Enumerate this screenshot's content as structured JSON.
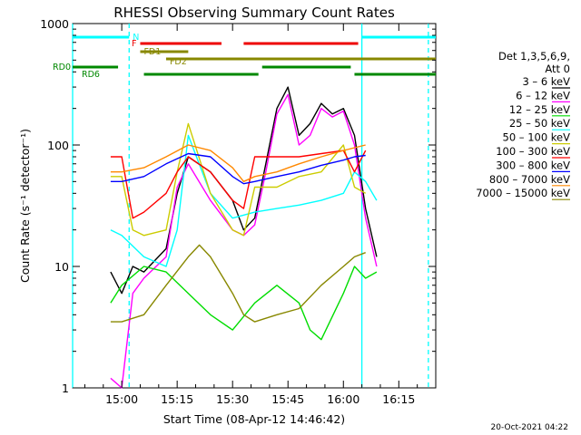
{
  "chart_data": {
    "type": "line",
    "title": "RHESSI Observing Summary Count Rates",
    "xlabel": "Start Time (08-Apr-12 14:46:42)",
    "ylabel": "Count Rate (s⁻¹ detector⁻¹)",
    "yscale": "log",
    "ylim": [
      1,
      1000
    ],
    "xlim": [
      "14:46:42",
      "16:25:00"
    ],
    "x_ticks": [
      "15:00",
      "15:15",
      "15:30",
      "15:45",
      "16:00",
      "16:15"
    ],
    "y_ticks": [
      "1",
      "10",
      "100",
      "1000"
    ],
    "footer_date": "20-Oct-2021 04:22",
    "legend": {
      "placement": "right",
      "header": [
        "Det 1,3,5,6,9,",
        "Att 0"
      ],
      "entries": [
        {
          "label": "3 – 6 keV",
          "color": "#000000"
        },
        {
          "label": "6 – 12 keV",
          "color": "#ff00ff"
        },
        {
          "label": "12 – 25 keV",
          "color": "#00dd00"
        },
        {
          "label": "25 – 50 keV",
          "color": "#00ffff"
        },
        {
          "label": "50 – 100 keV",
          "color": "#cccc00"
        },
        {
          "label": "100 – 300 keV",
          "color": "#ff0000"
        },
        {
          "label": "300 – 800 keV",
          "color": "#0000ff"
        },
        {
          "label": "800 – 7000 keV",
          "color": "#ff8800"
        },
        {
          "label": "7000 – 15000 keV",
          "color": "#888800"
        }
      ]
    },
    "flags": [
      {
        "label": "N",
        "color": "#00ffff",
        "segments": [
          [
            "14:46:42",
            "15:02"
          ],
          [
            "16:05",
            "16:25"
          ]
        ]
      },
      {
        "label": "F",
        "color": "#ee0000",
        "segments": [
          [
            "15:05",
            "15:27"
          ],
          [
            "15:33",
            "16:04"
          ]
        ]
      },
      {
        "label": "FD1",
        "color": "#888800",
        "segments": [
          [
            "15:05",
            "15:18"
          ]
        ]
      },
      {
        "label": "FD2",
        "color": "#888800",
        "segments": [
          [
            "15:12",
            "16:25"
          ]
        ]
      },
      {
        "label": "RD0",
        "color": "#008800",
        "segments": [
          [
            "14:46:42",
            "14:59"
          ],
          [
            "15:38",
            "16:02"
          ]
        ]
      },
      {
        "label": "RD6",
        "color": "#008800",
        "segments": [
          [
            "15:06",
            "15:37"
          ],
          [
            "16:03",
            "16:25"
          ]
        ]
      }
    ],
    "vlines": [
      {
        "t": "14:46:42",
        "color": "#00ffff",
        "style": "solid"
      },
      {
        "t": "15:02",
        "color": "#00ffff",
        "style": "dashed"
      },
      {
        "t": "16:05",
        "color": "#00ffff",
        "style": "solid"
      },
      {
        "t": "16:23",
        "color": "#00ffff",
        "style": "dashed"
      }
    ],
    "series": [
      {
        "name": "3 – 6 keV",
        "color": "#000000",
        "values": [
          [
            14.95,
            9
          ],
          [
            15.0,
            6
          ],
          [
            15.05,
            10
          ],
          [
            15.1,
            9
          ],
          [
            15.2,
            14
          ],
          [
            15.25,
            40
          ],
          [
            15.3,
            80
          ],
          [
            15.4,
            60
          ],
          [
            15.5,
            35
          ],
          [
            15.55,
            20
          ],
          [
            15.6,
            25
          ],
          [
            15.65,
            70
          ],
          [
            15.7,
            200
          ],
          [
            15.75,
            300
          ],
          [
            15.8,
            120
          ],
          [
            15.85,
            150
          ],
          [
            15.9,
            220
          ],
          [
            15.95,
            180
          ],
          [
            16.0,
            200
          ],
          [
            16.05,
            120
          ],
          [
            16.1,
            30
          ],
          [
            16.15,
            12
          ]
        ]
      },
      {
        "name": "6 – 12 keV",
        "color": "#ff00ff",
        "values": [
          [
            14.95,
            1.2
          ],
          [
            15.0,
            1.0
          ],
          [
            15.05,
            6
          ],
          [
            15.1,
            8
          ],
          [
            15.2,
            12
          ],
          [
            15.25,
            45
          ],
          [
            15.3,
            70
          ],
          [
            15.4,
            35
          ],
          [
            15.5,
            20
          ],
          [
            15.55,
            18
          ],
          [
            15.6,
            22
          ],
          [
            15.65,
            60
          ],
          [
            15.7,
            180
          ],
          [
            15.75,
            260
          ],
          [
            15.8,
            100
          ],
          [
            15.85,
            120
          ],
          [
            15.9,
            200
          ],
          [
            15.95,
            170
          ],
          [
            16.0,
            190
          ],
          [
            16.05,
            100
          ],
          [
            16.1,
            25
          ],
          [
            16.15,
            10
          ]
        ]
      },
      {
        "name": "12 – 25 keV",
        "color": "#00dd00",
        "values": [
          [
            14.95,
            5
          ],
          [
            15.0,
            7
          ],
          [
            15.1,
            10
          ],
          [
            15.2,
            9
          ],
          [
            15.3,
            6
          ],
          [
            15.4,
            4
          ],
          [
            15.5,
            3
          ],
          [
            15.6,
            5
          ],
          [
            15.7,
            7
          ],
          [
            15.8,
            5
          ],
          [
            15.85,
            3
          ],
          [
            15.9,
            2.5
          ],
          [
            16.0,
            6
          ],
          [
            16.05,
            10
          ],
          [
            16.1,
            8
          ],
          [
            16.15,
            9
          ]
        ]
      },
      {
        "name": "25 – 50 keV",
        "color": "#00ffff",
        "values": [
          [
            14.95,
            20
          ],
          [
            15.0,
            18
          ],
          [
            15.1,
            12
          ],
          [
            15.2,
            10
          ],
          [
            15.25,
            20
          ],
          [
            15.3,
            120
          ],
          [
            15.4,
            40
          ],
          [
            15.5,
            25
          ],
          [
            15.6,
            28
          ],
          [
            15.7,
            30
          ],
          [
            15.8,
            32
          ],
          [
            15.9,
            35
          ],
          [
            16.0,
            40
          ],
          [
            16.05,
            60
          ],
          [
            16.1,
            50
          ],
          [
            16.15,
            35
          ]
        ]
      },
      {
        "name": "50 – 100 keV",
        "color": "#cccc00",
        "values": [
          [
            14.95,
            55
          ],
          [
            15.0,
            55
          ],
          [
            15.05,
            20
          ],
          [
            15.1,
            18
          ],
          [
            15.2,
            20
          ],
          [
            15.25,
            60
          ],
          [
            15.3,
            150
          ],
          [
            15.4,
            40
          ],
          [
            15.5,
            20
          ],
          [
            15.55,
            18
          ],
          [
            15.6,
            45
          ],
          [
            15.7,
            45
          ],
          [
            15.8,
            55
          ],
          [
            15.9,
            60
          ],
          [
            16.0,
            100
          ],
          [
            16.05,
            45
          ],
          [
            16.1,
            40
          ]
        ]
      },
      {
        "name": "100 – 300 keV",
        "color": "#ff0000",
        "values": [
          [
            14.95,
            80
          ],
          [
            15.0,
            80
          ],
          [
            15.05,
            25
          ],
          [
            15.1,
            28
          ],
          [
            15.2,
            40
          ],
          [
            15.25,
            60
          ],
          [
            15.3,
            80
          ],
          [
            15.4,
            60
          ],
          [
            15.5,
            35
          ],
          [
            15.55,
            30
          ],
          [
            15.6,
            80
          ],
          [
            15.7,
            80
          ],
          [
            15.8,
            80
          ],
          [
            15.9,
            85
          ],
          [
            16.0,
            90
          ],
          [
            16.05,
            60
          ],
          [
            16.1,
            90
          ]
        ]
      },
      {
        "name": "300 – 800 keV",
        "color": "#0000ff",
        "values": [
          [
            14.95,
            50
          ],
          [
            15.0,
            50
          ],
          [
            15.1,
            55
          ],
          [
            15.2,
            70
          ],
          [
            15.3,
            85
          ],
          [
            15.4,
            80
          ],
          [
            15.5,
            55
          ],
          [
            15.55,
            48
          ],
          [
            15.6,
            50
          ],
          [
            15.7,
            55
          ],
          [
            15.8,
            60
          ],
          [
            15.9,
            68
          ],
          [
            16.0,
            75
          ],
          [
            16.05,
            80
          ],
          [
            16.1,
            82
          ]
        ]
      },
      {
        "name": "800 – 7000 keV",
        "color": "#ff8800",
        "values": [
          [
            14.95,
            60
          ],
          [
            15.0,
            60
          ],
          [
            15.1,
            65
          ],
          [
            15.2,
            80
          ],
          [
            15.3,
            100
          ],
          [
            15.4,
            90
          ],
          [
            15.5,
            65
          ],
          [
            15.55,
            50
          ],
          [
            15.6,
            55
          ],
          [
            15.7,
            60
          ],
          [
            15.8,
            70
          ],
          [
            15.9,
            80
          ],
          [
            16.0,
            90
          ],
          [
            16.05,
            95
          ],
          [
            16.1,
            100
          ]
        ]
      },
      {
        "name": "7000 – 15000 keV",
        "color": "#888800",
        "values": [
          [
            14.95,
            3.5
          ],
          [
            15.0,
            3.5
          ],
          [
            15.1,
            4
          ],
          [
            15.2,
            7
          ],
          [
            15.3,
            12
          ],
          [
            15.35,
            15
          ],
          [
            15.4,
            12
          ],
          [
            15.5,
            6
          ],
          [
            15.55,
            4
          ],
          [
            15.6,
            3.5
          ],
          [
            15.7,
            4
          ],
          [
            15.8,
            4.5
          ],
          [
            15.9,
            7
          ],
          [
            16.0,
            10
          ],
          [
            16.05,
            12
          ],
          [
            16.1,
            13
          ]
        ]
      }
    ]
  }
}
